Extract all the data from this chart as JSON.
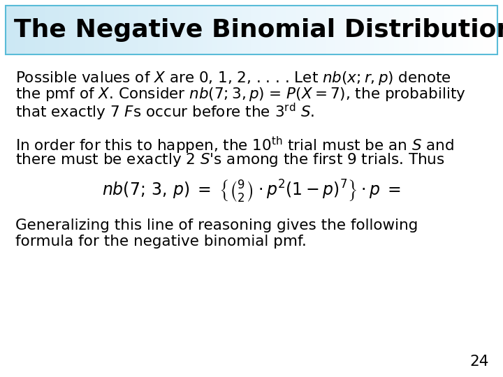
{
  "title": "The Negative Binomial Distribution",
  "title_bg_top": "#cce8f6",
  "title_bg_bottom": "#e8f5fc",
  "title_border_color": "#5abcd8",
  "title_text_color": "#000000",
  "title_fontsize": 26,
  "body_bg_color": "#ffffff",
  "body_text_color": "#000000",
  "page_number": "24",
  "para1_line1": "Possible values of $X$ are 0, 1, 2, . . . . Let $nb(x; r, p)$ denote",
  "para1_line2": "the pmf of $X$. Consider $nb(7; 3, p)$ = $P(X = 7)$, the probability",
  "para1_line3": "that exactly 7 $F$s occur before the 3$^{\\mathrm{rd}}$ $S$.",
  "para2_line1": "In order for this to happen, the 10$^{\\mathrm{th}}$ trial must be an $S$ and",
  "para2_line2": "there must be exactly 2 $S$'s among the first 9 trials. Thus",
  "formula": "$nb(7;\\, 3,\\, p)\\; =\\; \\left\\{\\binom{9}{2} \\cdot p^{2}(1 - p)^{7}\\right\\} \\cdot p\\; =$",
  "para3_line1": "Generalizing this line of reasoning gives the following",
  "para3_line2": "formula for the negative binomial pmf.",
  "body_fontsize": 15.5,
  "formula_fontsize": 17
}
